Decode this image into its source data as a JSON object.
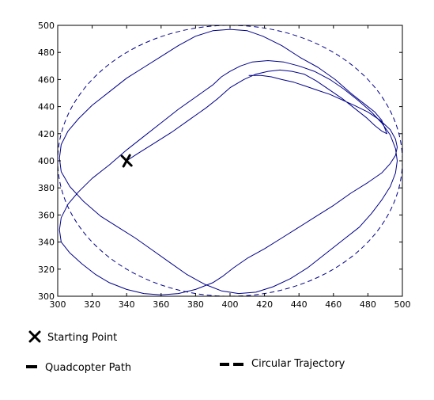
{
  "chart_data": {
    "type": "line",
    "title": "",
    "xlabel": "",
    "ylabel": "",
    "xlim": [
      300,
      500
    ],
    "ylim": [
      300,
      500
    ],
    "x_ticks": [
      300,
      320,
      340,
      360,
      380,
      400,
      420,
      440,
      460,
      480,
      500
    ],
    "y_ticks": [
      300,
      320,
      340,
      360,
      380,
      400,
      420,
      440,
      460,
      480,
      500
    ],
    "grid": false,
    "legend": {
      "placement": "below-plot",
      "entries": [
        {
          "label": "Starting Point",
          "marker": "x"
        },
        {
          "label": "Quadcopter Path",
          "style": "solid"
        },
        {
          "label": "Circular Trajectory",
          "style": "dashed"
        }
      ]
    },
    "series": [
      {
        "style": "dashed",
        "color": "#00008b",
        "shape": "circle",
        "center": [
          400,
          400
        ],
        "radius": 100
      },
      {
        "style": "solid",
        "color": "#00008b",
        "x": [
          340,
          346,
          356,
          366,
          376,
          386,
          393,
          400,
          408,
          415,
          422,
          429,
          436,
          443,
          450,
          457,
          465,
          472,
          479,
          484,
          488,
          491,
          488,
          484,
          478,
          470,
          461,
          451,
          441,
          430,
          419,
          410,
          400,
          390,
          380,
          370,
          360,
          350,
          340,
          330,
          320,
          312,
          306,
          302,
          301,
          302,
          307,
          315,
          325,
          335,
          345,
          355,
          365,
          375,
          385,
          395,
          405,
          415,
          425,
          435,
          445,
          455,
          465,
          475,
          482,
          488,
          493,
          496,
          497,
          496,
          493,
          488,
          482,
          474,
          466,
          458,
          449,
          440,
          431,
          422,
          413,
          406,
          400,
          395,
          390,
          380,
          370,
          360,
          350,
          340,
          330,
          320,
          312,
          306,
          302,
          301,
          302,
          307,
          314,
          322,
          330,
          340,
          350,
          360,
          370,
          380,
          390,
          396,
          402,
          410,
          420,
          430,
          440,
          450,
          460,
          470,
          480,
          488,
          493,
          496,
          497,
          496,
          493,
          487,
          480,
          472,
          465,
          458,
          451,
          444,
          437,
          430,
          424,
          418,
          411
        ],
        "y": [
          400,
          405,
          413,
          421,
          430,
          439,
          446,
          454,
          460,
          464,
          466,
          467,
          466,
          464,
          459,
          453,
          446,
          439,
          432,
          426,
          422,
          420,
          430,
          436,
          442,
          450,
          460,
          469,
          476,
          485,
          492,
          496,
          497,
          496,
          492,
          485,
          477,
          469,
          461,
          451,
          441,
          431,
          422,
          412,
          402,
          392,
          381,
          370,
          359,
          351,
          343,
          334,
          325,
          316,
          309,
          304,
          302,
          303,
          307,
          313,
          321,
          331,
          341,
          351,
          361,
          371,
          381,
          391,
          400,
          409,
          419,
          428,
          436,
          445,
          453,
          460,
          466,
          470,
          473,
          474,
          473,
          470,
          466,
          462,
          456,
          447,
          438,
          428,
          418,
          408,
          397,
          387,
          377,
          368,
          358,
          349,
          340,
          332,
          324,
          316,
          310,
          305,
          302,
          301,
          302,
          305,
          310,
          315,
          321,
          328,
          335,
          343,
          351,
          359,
          367,
          376,
          384,
          391,
          398,
          404,
          410,
          416,
          423,
          430,
          436,
          441,
          445,
          449,
          452,
          455,
          458,
          460,
          462,
          463,
          463
        ]
      }
    ],
    "starting_point": {
      "x": 340,
      "y": 400
    }
  }
}
